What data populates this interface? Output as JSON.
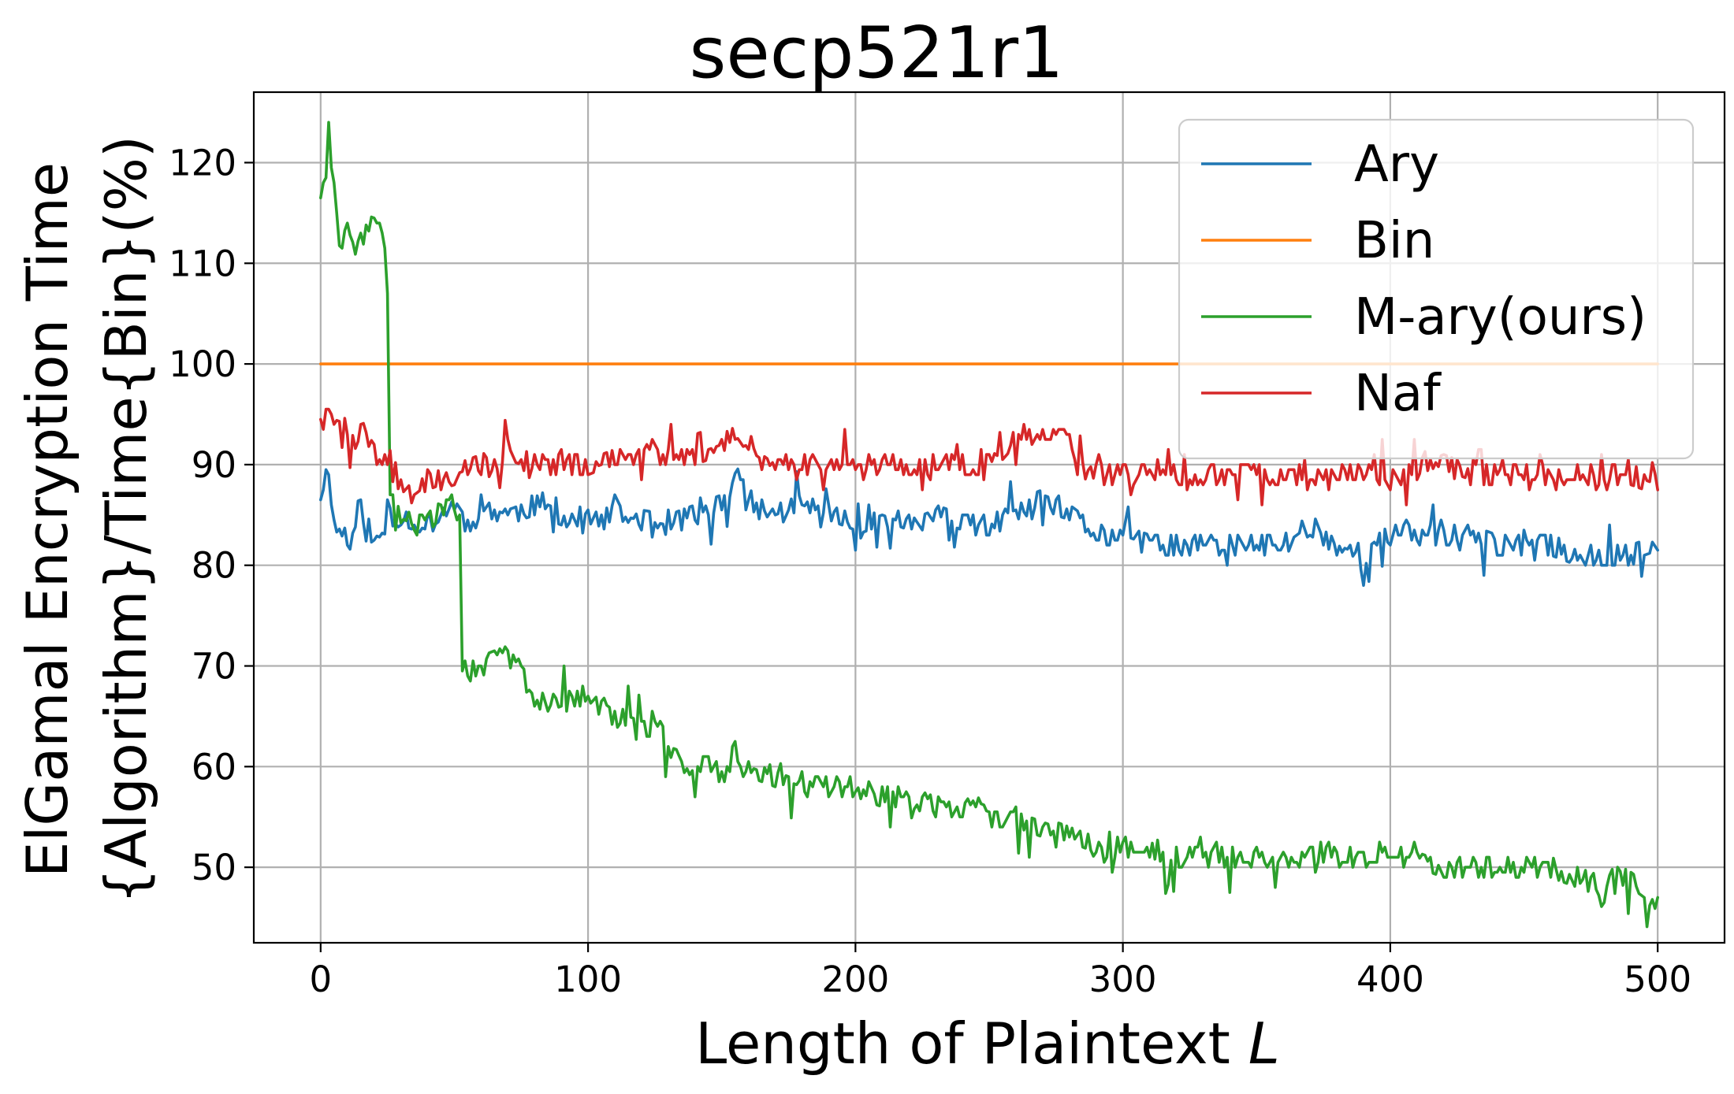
{
  "chart_data": {
    "type": "line",
    "title": "secp521r1",
    "xlabel_text": "Length of Plaintext ",
    "xlabel_var": "L",
    "ylabel_line1": "ElGamal Encryption Time",
    "ylabel_line2": "{Algorithm}/Time{Bin}(%)",
    "xlim": [
      -25,
      525
    ],
    "ylim": [
      42.5,
      127
    ],
    "xticks": [
      0,
      100,
      200,
      300,
      400,
      500
    ],
    "xtick_labels": [
      "0",
      "100",
      "200",
      "300",
      "400",
      "500"
    ],
    "yticks": [
      50,
      60,
      70,
      80,
      90,
      100,
      110,
      120
    ],
    "ytick_labels": [
      "50",
      "60",
      "70",
      "80",
      "90",
      "100",
      "110",
      "120"
    ],
    "grid": true,
    "legend_position": "upper-right",
    "x_range": [
      0,
      500
    ],
    "series": [
      {
        "name": "Ary",
        "color": "#1f77b4",
        "anchors": [
          [
            0,
            87
          ],
          [
            3,
            90
          ],
          [
            5,
            84
          ],
          [
            10,
            83
          ],
          [
            15,
            86
          ],
          [
            20,
            82
          ],
          [
            25,
            84
          ],
          [
            30,
            85
          ],
          [
            40,
            84
          ],
          [
            50,
            86
          ],
          [
            55,
            84
          ],
          [
            60,
            86
          ],
          [
            70,
            85
          ],
          [
            80,
            86
          ],
          [
            90,
            85
          ],
          [
            100,
            84
          ],
          [
            110,
            85
          ],
          [
            130,
            84
          ],
          [
            140,
            85
          ],
          [
            150,
            86
          ],
          [
            157,
            89
          ],
          [
            160,
            86
          ],
          [
            170,
            85
          ],
          [
            180,
            86
          ],
          [
            190,
            85
          ],
          [
            200,
            84
          ],
          [
            210,
            85
          ],
          [
            220,
            84
          ],
          [
            230,
            85
          ],
          [
            240,
            84
          ],
          [
            250,
            84
          ],
          [
            260,
            85
          ],
          [
            270,
            86
          ],
          [
            280,
            85
          ],
          [
            290,
            83
          ],
          [
            300,
            83
          ],
          [
            310,
            82
          ],
          [
            320,
            82
          ],
          [
            330,
            82
          ],
          [
            340,
            82
          ],
          [
            350,
            82
          ],
          [
            360,
            82
          ],
          [
            370,
            84
          ],
          [
            380,
            82
          ],
          [
            390,
            81
          ],
          [
            400,
            83
          ],
          [
            410,
            83
          ],
          [
            420,
            83
          ],
          [
            430,
            83
          ],
          [
            440,
            82
          ],
          [
            450,
            82
          ],
          [
            460,
            82
          ],
          [
            470,
            81
          ],
          [
            480,
            81
          ],
          [
            490,
            81
          ],
          [
            500,
            82
          ]
        ],
        "noise": 1.3,
        "seed": 11
      },
      {
        "name": "Bin",
        "color": "#ff7f0e",
        "anchors": [
          [
            0,
            100
          ],
          [
            500,
            100
          ]
        ],
        "noise": 0,
        "seed": 1
      },
      {
        "name": "M-ary(ours)",
        "color": "#2ca02c",
        "anchors": [
          [
            0,
            117
          ],
          [
            2,
            118
          ],
          [
            3,
            123
          ],
          [
            6,
            114
          ],
          [
            10,
            113
          ],
          [
            15,
            112
          ],
          [
            20,
            114
          ],
          [
            24,
            112
          ],
          [
            25,
            108
          ],
          [
            26,
            87
          ],
          [
            28,
            85
          ],
          [
            35,
            84
          ],
          [
            40,
            84
          ],
          [
            45,
            86
          ],
          [
            50,
            86
          ],
          [
            52,
            85
          ],
          [
            53,
            70
          ],
          [
            60,
            70
          ],
          [
            70,
            71
          ],
          [
            75,
            70
          ],
          [
            80,
            66
          ],
          [
            90,
            67
          ],
          [
            100,
            67
          ],
          [
            110,
            65
          ],
          [
            120,
            64
          ],
          [
            128,
            64
          ],
          [
            130,
            61
          ],
          [
            140,
            60
          ],
          [
            150,
            60
          ],
          [
            160,
            60
          ],
          [
            170,
            59
          ],
          [
            180,
            58
          ],
          [
            190,
            58
          ],
          [
            200,
            58
          ],
          [
            210,
            57
          ],
          [
            220,
            57
          ],
          [
            230,
            56
          ],
          [
            240,
            56
          ],
          [
            250,
            55
          ],
          [
            260,
            55
          ],
          [
            270,
            54
          ],
          [
            280,
            53
          ],
          [
            290,
            52
          ],
          [
            300,
            52
          ],
          [
            310,
            52
          ],
          [
            320,
            51
          ],
          [
            330,
            51
          ],
          [
            340,
            51
          ],
          [
            350,
            51
          ],
          [
            360,
            51
          ],
          [
            370,
            51
          ],
          [
            380,
            51
          ],
          [
            390,
            51
          ],
          [
            400,
            51
          ],
          [
            410,
            51
          ],
          [
            420,
            50
          ],
          [
            430,
            50
          ],
          [
            440,
            50
          ],
          [
            450,
            50
          ],
          [
            460,
            50
          ],
          [
            470,
            49
          ],
          [
            480,
            48
          ],
          [
            490,
            49
          ],
          [
            495,
            48
          ],
          [
            500,
            46
          ]
        ],
        "noise": 1.3,
        "seed": 29
      },
      {
        "name": "Naf",
        "color": "#d62728",
        "anchors": [
          [
            0,
            95
          ],
          [
            5,
            95
          ],
          [
            10,
            92
          ],
          [
            15,
            93
          ],
          [
            20,
            91
          ],
          [
            25,
            91
          ],
          [
            30,
            88
          ],
          [
            35,
            87
          ],
          [
            40,
            88
          ],
          [
            50,
            89
          ],
          [
            60,
            90
          ],
          [
            70,
            91
          ],
          [
            80,
            90
          ],
          [
            90,
            90
          ],
          [
            100,
            90
          ],
          [
            110,
            91
          ],
          [
            120,
            91
          ],
          [
            130,
            91
          ],
          [
            140,
            91
          ],
          [
            150,
            92
          ],
          [
            155,
            94
          ],
          [
            160,
            92
          ],
          [
            170,
            90
          ],
          [
            180,
            90
          ],
          [
            190,
            90
          ],
          [
            200,
            90
          ],
          [
            210,
            90
          ],
          [
            220,
            90
          ],
          [
            230,
            90
          ],
          [
            240,
            90
          ],
          [
            250,
            90
          ],
          [
            260,
            93
          ],
          [
            270,
            93
          ],
          [
            280,
            93
          ],
          [
            283,
            90
          ],
          [
            290,
            89
          ],
          [
            300,
            89
          ],
          [
            310,
            89
          ],
          [
            320,
            89
          ],
          [
            330,
            89
          ],
          [
            340,
            89
          ],
          [
            350,
            89
          ],
          [
            360,
            89
          ],
          [
            370,
            89
          ],
          [
            380,
            89
          ],
          [
            390,
            89
          ],
          [
            400,
            89
          ],
          [
            410,
            89
          ],
          [
            420,
            90
          ],
          [
            430,
            89
          ],
          [
            440,
            89
          ],
          [
            450,
            89
          ],
          [
            460,
            89
          ],
          [
            470,
            89
          ],
          [
            480,
            89
          ],
          [
            490,
            89
          ],
          [
            500,
            88
          ]
        ],
        "noise": 1.3,
        "seed": 47
      }
    ]
  }
}
